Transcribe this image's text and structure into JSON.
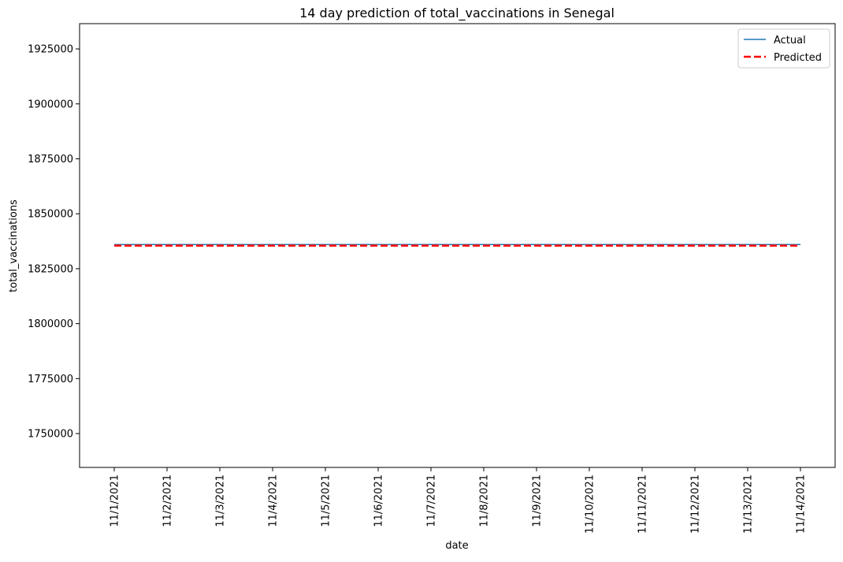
{
  "chart_data": {
    "type": "line",
    "title": "14 day prediction of total_vaccinations in Senegal",
    "xlabel": "date",
    "ylabel": "total_vaccinations",
    "categories": [
      "11/1/2021",
      "11/2/2021",
      "11/3/2021",
      "11/4/2021",
      "11/5/2021",
      "11/6/2021",
      "11/7/2021",
      "11/8/2021",
      "11/9/2021",
      "11/10/2021",
      "11/11/2021",
      "11/12/2021",
      "11/13/2021",
      "11/14/2021"
    ],
    "y_ticks": [
      1750000,
      1775000,
      1800000,
      1825000,
      1850000,
      1875000,
      1900000,
      1925000
    ],
    "ylim": [
      1734600,
      1936500
    ],
    "grid": false,
    "legend_position": "top-right",
    "series": [
      {
        "name": "Actual",
        "color": "#1f77b4",
        "style": "solid",
        "values": [
          1836000,
          1836000,
          1836000,
          1836000,
          1836000,
          1836000,
          1836000,
          1836000,
          1836000,
          1836000,
          1836000,
          1836000,
          1836000,
          1836000
        ]
      },
      {
        "name": "Predicted",
        "color": "#ff0000",
        "style": "dashed",
        "values": [
          1835500,
          1835500,
          1835500,
          1835500,
          1835500,
          1835500,
          1835500,
          1835500,
          1835500,
          1835500,
          1835500,
          1835500,
          1835500,
          1835500
        ]
      }
    ]
  }
}
